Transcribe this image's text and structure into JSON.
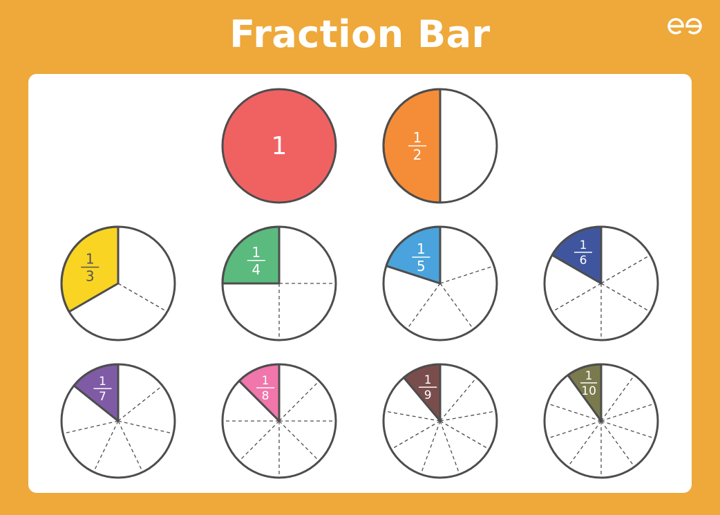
{
  "header": {
    "title": "Fraction Bar",
    "logo": "GfG"
  },
  "outline_color": "#4D4D4D",
  "fractions": [
    {
      "label": "1",
      "numerator": "1",
      "denominator": "",
      "parts": 1,
      "color": "#F06262",
      "text_color": "#FFFFFF"
    },
    {
      "label": "1/2",
      "numerator": "1",
      "denominator": "2",
      "parts": 2,
      "color": "#F58D38",
      "text_color": "#FFFFFF"
    },
    {
      "label": "1/3",
      "numerator": "1",
      "denominator": "3",
      "parts": 3,
      "color": "#F9D423",
      "text_color": "#555555"
    },
    {
      "label": "1/4",
      "numerator": "1",
      "denominator": "4",
      "parts": 4,
      "color": "#5BBA7E",
      "text_color": "#FFFFFF"
    },
    {
      "label": "1/5",
      "numerator": "1",
      "denominator": "5",
      "parts": 5,
      "color": "#4AA3DC",
      "text_color": "#FFFFFF"
    },
    {
      "label": "1/6",
      "numerator": "1",
      "denominator": "6",
      "parts": 6,
      "color": "#3F569F",
      "text_color": "#FFFFFF"
    },
    {
      "label": "1/7",
      "numerator": "1",
      "denominator": "7",
      "parts": 7,
      "color": "#7F5BA6",
      "text_color": "#FFFFFF"
    },
    {
      "label": "1/8",
      "numerator": "1",
      "denominator": "8",
      "parts": 8,
      "color": "#F076AB",
      "text_color": "#FFFFFF"
    },
    {
      "label": "1/9",
      "numerator": "1",
      "denominator": "9",
      "parts": 9,
      "color": "#7A4D4D",
      "text_color": "#FFFFFF"
    },
    {
      "label": "1/10",
      "numerator": "1",
      "denominator": "10",
      "parts": 10,
      "color": "#7A7A4E",
      "text_color": "#FFFFFF"
    }
  ]
}
